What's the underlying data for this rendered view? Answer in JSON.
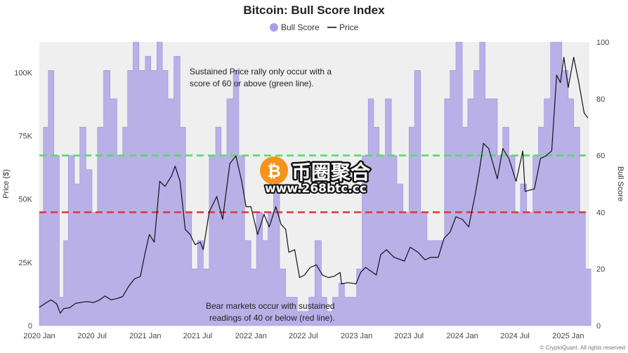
{
  "chart_data": {
    "type": "area",
    "title": "Bitcoin: Bull Score Index",
    "legend": [
      {
        "name": "Bull Score",
        "color": "#a99ee6",
        "marker": "circle"
      },
      {
        "name": "Price",
        "color": "#111111",
        "marker": "line"
      }
    ],
    "legend_position": "top-center",
    "ylabel_left": "Price ($)",
    "ylabel_right": "Bull Score",
    "y_left_ticks": [
      "0",
      "25K",
      "50K",
      "75K",
      "100K"
    ],
    "y_left_range": [
      0,
      112000
    ],
    "y_right_ticks": [
      "0",
      "20",
      "40",
      "60",
      "80",
      "100"
    ],
    "y_right_range": [
      0,
      100
    ],
    "x_ticks": [
      "2020 Jan",
      "2020 Jul",
      "2021 Jan",
      "2021 Jul",
      "2022 Jan",
      "2022 Jul",
      "2023 Jan",
      "2023 Jul",
      "2024 Jan",
      "2024 Jul",
      "2025 Jan"
    ],
    "x_range": [
      "2020-01-01",
      "2025-03-15"
    ],
    "thresholds": [
      {
        "value": 60,
        "color": "#4cd964",
        "style": "dashed"
      },
      {
        "value": 40,
        "color": "#e03a3a",
        "style": "dashed"
      }
    ],
    "annotations": [
      {
        "lines": [
          "Sustained Price rally only occur with a",
          "score of 60 or above (green line)."
        ]
      },
      {
        "lines": [
          "Bear markets occur with sustained",
          "readings of 40 or below (red line)."
        ]
      }
    ],
    "series": [
      {
        "name": "Bull Score",
        "color": "#a99ee6",
        "x": [
          "2020-01-01",
          "2020-01-15",
          "2020-02-01",
          "2020-02-20",
          "2020-03-10",
          "2020-03-25",
          "2020-04-10",
          "2020-05-01",
          "2020-05-20",
          "2020-06-10",
          "2020-07-01",
          "2020-07-20",
          "2020-08-10",
          "2020-09-01",
          "2020-09-25",
          "2020-10-15",
          "2020-11-01",
          "2020-11-20",
          "2020-12-10",
          "2021-01-01",
          "2021-01-20",
          "2021-02-10",
          "2021-03-01",
          "2021-03-20",
          "2021-04-10",
          "2021-05-01",
          "2021-05-20",
          "2021-06-10",
          "2021-07-01",
          "2021-07-20",
          "2021-08-10",
          "2021-09-01",
          "2021-09-20",
          "2021-10-10",
          "2021-11-01",
          "2021-11-20",
          "2021-12-10",
          "2022-01-01",
          "2022-01-20",
          "2022-02-10",
          "2022-03-01",
          "2022-03-20",
          "2022-04-10",
          "2022-05-01",
          "2022-05-20",
          "2022-06-10",
          "2022-07-01",
          "2022-07-20",
          "2022-08-10",
          "2022-09-01",
          "2022-09-20",
          "2022-10-10",
          "2022-11-01",
          "2022-11-20",
          "2022-12-10",
          "2023-01-01",
          "2023-01-20",
          "2023-02-10",
          "2023-03-01",
          "2023-03-20",
          "2023-04-10",
          "2023-05-01",
          "2023-05-20",
          "2023-06-10",
          "2023-07-01",
          "2023-07-20",
          "2023-08-10",
          "2023-09-01",
          "2023-09-20",
          "2023-10-10",
          "2023-11-01",
          "2023-11-20",
          "2023-12-10",
          "2024-01-01",
          "2024-01-20",
          "2024-02-10",
          "2024-03-01",
          "2024-03-20",
          "2024-04-10",
          "2024-05-01",
          "2024-05-20",
          "2024-06-10",
          "2024-07-01",
          "2024-07-20",
          "2024-08-10",
          "2024-09-01",
          "2024-09-20",
          "2024-10-10",
          "2024-11-01",
          "2024-11-20",
          "2024-12-10",
          "2025-01-01",
          "2025-01-20",
          "2025-02-10",
          "2025-03-01"
        ],
        "values": [
          40,
          70,
          90,
          60,
          10,
          30,
          60,
          50,
          70,
          55,
          40,
          70,
          90,
          80,
          60,
          70,
          90,
          100,
          90,
          95,
          90,
          100,
          90,
          80,
          95,
          70,
          40,
          20,
          30,
          20,
          60,
          70,
          60,
          80,
          90,
          60,
          30,
          20,
          40,
          30,
          40,
          50,
          20,
          10,
          10,
          5,
          5,
          10,
          30,
          10,
          5,
          10,
          15,
          10,
          10,
          20,
          60,
          80,
          70,
          60,
          80,
          60,
          50,
          40,
          70,
          90,
          40,
          30,
          30,
          30,
          80,
          90,
          100,
          70,
          80,
          90,
          100,
          80,
          80,
          60,
          70,
          60,
          40,
          50,
          40,
          60,
          70,
          80,
          100,
          100,
          90,
          80,
          70,
          40,
          20
        ]
      },
      {
        "name": "Price",
        "color": "#111111",
        "x": [
          "2020-01-01",
          "2020-01-20",
          "2020-02-10",
          "2020-03-01",
          "2020-03-13",
          "2020-03-25",
          "2020-04-15",
          "2020-05-05",
          "2020-05-25",
          "2020-06-15",
          "2020-07-05",
          "2020-07-25",
          "2020-08-15",
          "2020-09-05",
          "2020-09-25",
          "2020-10-15",
          "2020-11-05",
          "2020-11-25",
          "2020-12-15",
          "2021-01-01",
          "2021-01-15",
          "2021-02-01",
          "2021-02-20",
          "2021-03-10",
          "2021-04-01",
          "2021-04-14",
          "2021-05-01",
          "2021-05-19",
          "2021-06-05",
          "2021-06-22",
          "2021-07-10",
          "2021-07-20",
          "2021-08-10",
          "2021-09-05",
          "2021-09-25",
          "2021-10-10",
          "2021-10-20",
          "2021-11-10",
          "2021-11-30",
          "2021-12-15",
          "2022-01-01",
          "2022-01-24",
          "2022-02-15",
          "2022-03-05",
          "2022-03-28",
          "2022-04-15",
          "2022-05-01",
          "2022-05-12",
          "2022-06-01",
          "2022-06-18",
          "2022-07-05",
          "2022-07-25",
          "2022-08-15",
          "2022-09-05",
          "2022-09-25",
          "2022-10-15",
          "2022-11-05",
          "2022-11-10",
          "2022-12-01",
          "2022-12-30",
          "2023-01-15",
          "2023-02-01",
          "2023-03-10",
          "2023-03-25",
          "2023-04-14",
          "2023-05-10",
          "2023-06-15",
          "2023-07-05",
          "2023-08-01",
          "2023-08-25",
          "2023-09-15",
          "2023-10-10",
          "2023-10-30",
          "2023-11-20",
          "2023-12-10",
          "2024-01-01",
          "2024-01-23",
          "2024-02-15",
          "2024-03-01",
          "2024-03-14",
          "2024-04-01",
          "2024-05-01",
          "2024-05-20",
          "2024-06-10",
          "2024-07-05",
          "2024-07-28",
          "2024-08-05",
          "2024-09-06",
          "2024-09-27",
          "2024-10-15",
          "2024-11-05",
          "2024-11-22",
          "2024-12-05",
          "2024-12-17",
          "2025-01-01",
          "2025-01-20",
          "2025-02-05",
          "2025-02-25",
          "2025-03-10"
        ],
        "values": [
          7200,
          8700,
          10200,
          8600,
          4900,
          6700,
          7100,
          8800,
          9200,
          9500,
          9100,
          10000,
          11700,
          10200,
          10700,
          11500,
          15600,
          18500,
          19400,
          29000,
          36000,
          33000,
          57000,
          55000,
          59000,
          63000,
          57000,
          38000,
          36000,
          32000,
          33000,
          30000,
          45000,
          51000,
          42000,
          55000,
          64000,
          67000,
          57000,
          47000,
          47000,
          36000,
          44000,
          39000,
          47000,
          40000,
          38000,
          29000,
          30000,
          19000,
          20000,
          23000,
          24000,
          20000,
          19000,
          19500,
          21000,
          16500,
          17000,
          16500,
          21000,
          23000,
          20000,
          28000,
          30000,
          27000,
          25500,
          31000,
          29000,
          26000,
          27000,
          27000,
          34500,
          37000,
          43000,
          42000,
          39000,
          52000,
          62000,
          72000,
          70000,
          58000,
          70000,
          66000,
          57000,
          69000,
          53000,
          54000,
          66000,
          67000,
          69000,
          99000,
          96000,
          106000,
          94000,
          106000,
          97000,
          84000,
          82000
        ]
      }
    ]
  },
  "watermark": {
    "brand": "币圈聚合",
    "url": "www.268btc.cc",
    "logo_glyph": "₿",
    "logo_color": "#f7931a"
  },
  "credit": "© CryptoQuant. All rights reserved"
}
